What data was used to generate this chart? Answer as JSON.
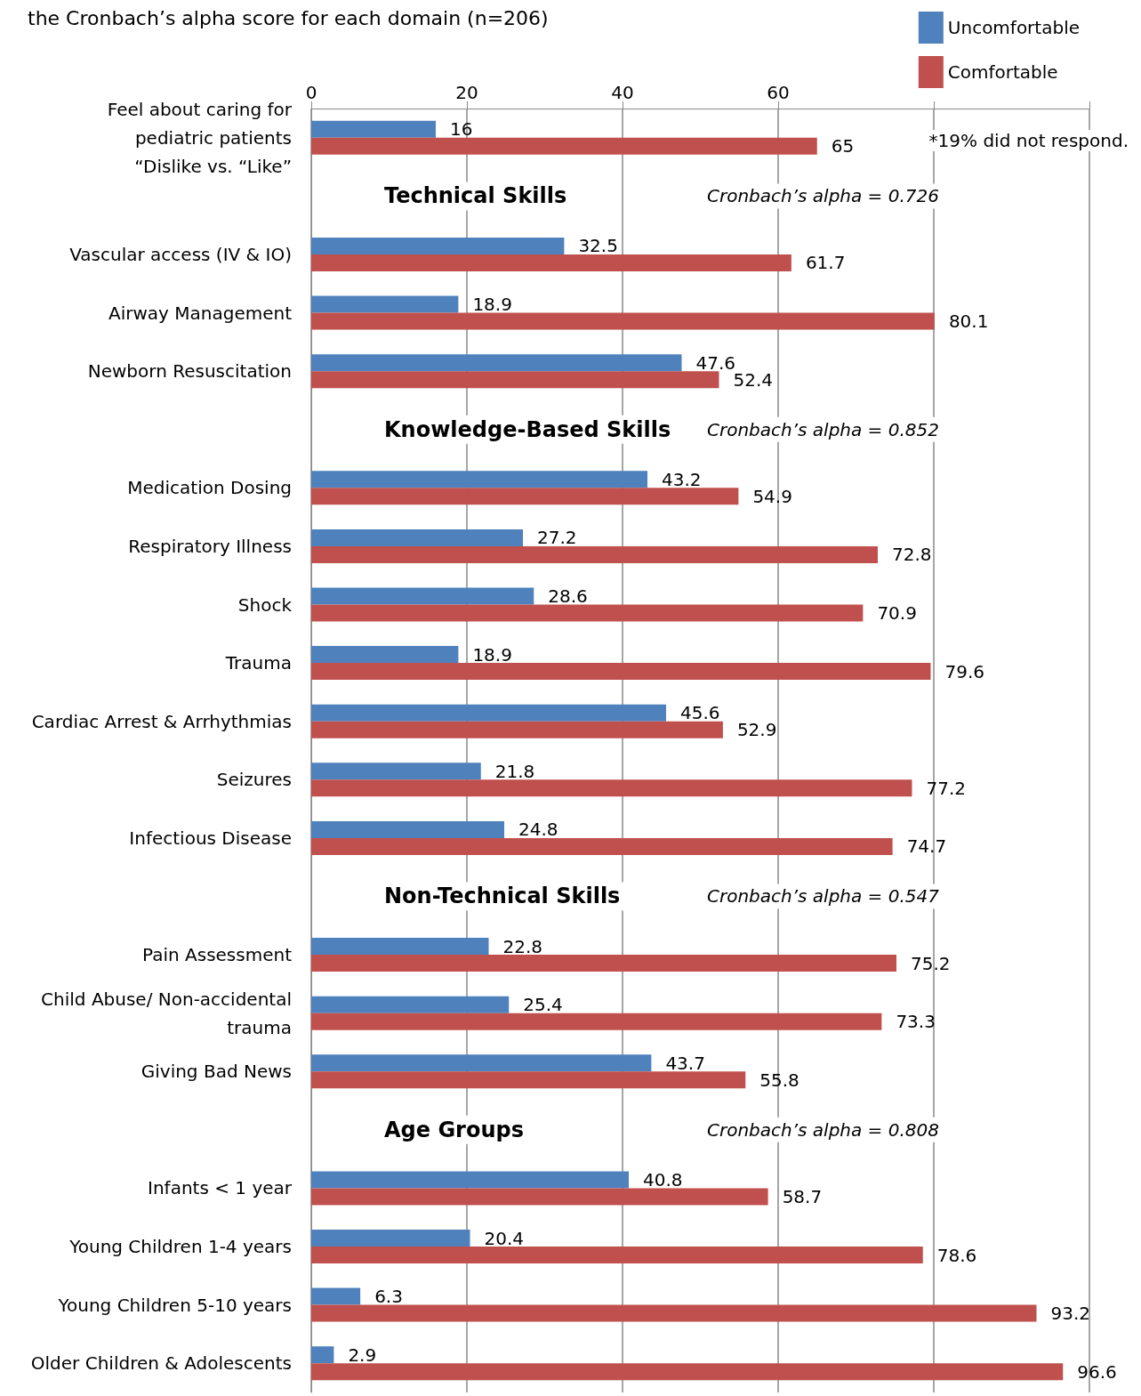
{
  "chart_data": {
    "type": "bar",
    "orientation": "horizontal",
    "title": "the Cronbach’s alpha score for each domain (n=206)",
    "categories": [
      "Feel about caring for\npediatric patients\n“Dislike vs. “Like”",
      null,
      "Vascular access (IV & IO)",
      "Airway Management",
      "Newborn Resuscitation",
      null,
      "Medication Dosing",
      "Respiratory Illness",
      "Shock",
      "Trauma",
      "Cardiac Arrest & Arrhythmias",
      "Seizures",
      "Infectious Disease",
      null,
      "Pain Assessment",
      "Child Abuse/ Non-accidental\ntrauma",
      "Giving Bad News",
      null,
      "Infants < 1 year",
      "Young Children 1-4 years",
      "Young Children 5-10 years",
      "Older Children & Adolescents"
    ],
    "series": [
      {
        "name": "Uncomfortable",
        "color": "#4f81bd",
        "values": [
          16,
          null,
          32.5,
          18.9,
          47.6,
          null,
          43.2,
          27.2,
          28.6,
          18.9,
          45.6,
          21.8,
          24.8,
          null,
          22.8,
          25.4,
          43.7,
          null,
          40.8,
          20.4,
          6.3,
          2.9
        ]
      },
      {
        "name": "Comfortable",
        "color": "#c0504d",
        "values": [
          65,
          null,
          61.7,
          80.1,
          52.4,
          null,
          54.9,
          72.8,
          70.9,
          79.6,
          52.9,
          77.2,
          74.7,
          null,
          75.2,
          73.3,
          55.8,
          null,
          58.7,
          78.6,
          93.2,
          96.6
        ]
      }
    ],
    "xlim": [
      0,
      100
    ],
    "xticks": [
      0,
      20,
      40,
      60,
      {
        "value": 80,
        "label": null
      },
      {
        "value": 100,
        "label": null
      }
    ],
    "grid": "x",
    "legend": "top right",
    "data_labels": true,
    "annotations": [
      "*19% did not respond.",
      "Technical Skills",
      "Cronbach’s alpha = 0.726",
      "Knowledge-Based Skills",
      "Cronbach’s alpha = 0.852",
      "Non-Technical Skills",
      "Cronbach’s alpha = 0.547",
      "Age Groups",
      "Cronbach’s alpha = 0.808"
    ]
  }
}
